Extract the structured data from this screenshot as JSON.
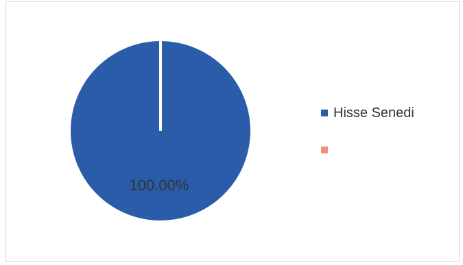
{
  "chart_data": {
    "type": "pie",
    "slices": [
      {
        "name": "Hisse Senedi",
        "value": 100.0,
        "color": "#2b5caa"
      },
      {
        "name": "",
        "value": 0.0,
        "color": "#f28e7b"
      }
    ],
    "data_label": "100.00%",
    "legend_placement": "right"
  }
}
